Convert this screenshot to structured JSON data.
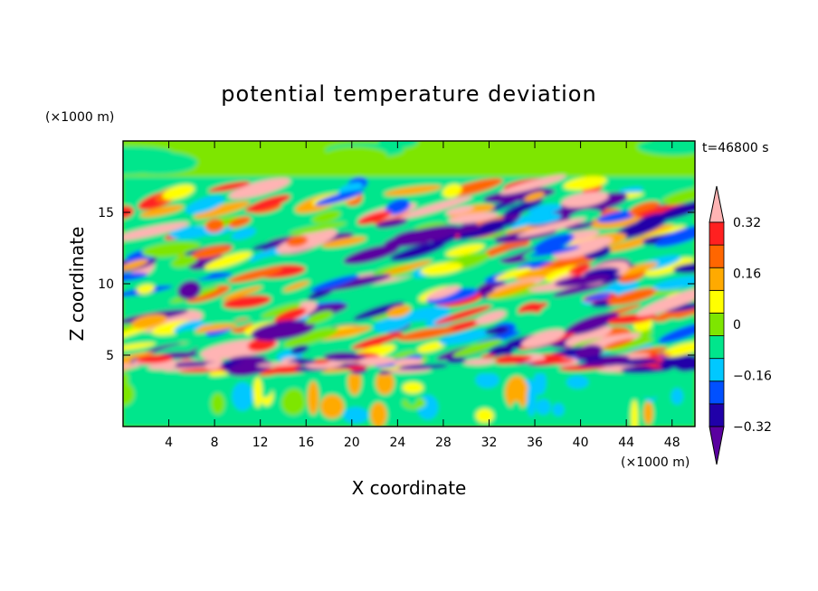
{
  "chart_data": {
    "type": "heatmap",
    "title": "potential temperature deviation",
    "xlabel": "X coordinate",
    "ylabel": "Z coordinate",
    "x_unit": "(×1000 m)",
    "y_unit": "(×1000 m)",
    "time_label": "t=46800 s",
    "xlim": [
      0,
      50
    ],
    "ylim": [
      0,
      20
    ],
    "x_ticks": [
      4,
      8,
      12,
      16,
      20,
      24,
      28,
      32,
      36,
      40,
      44,
      48
    ],
    "y_ticks": [
      5,
      10,
      15
    ],
    "colorbar": {
      "levels": [
        -0.4,
        -0.32,
        -0.24,
        -0.16,
        -0.08,
        0,
        0.08,
        0.16,
        0.24,
        0.32,
        0.4
      ],
      "labels": [
        "0.32",
        "0.16",
        "0",
        "−0.16",
        "−0.32"
      ],
      "label_values": [
        0.32,
        0.16,
        0,
        -0.16,
        -0.32
      ],
      "colors": [
        "#5a00a0",
        "#2000a8",
        "#0050ff",
        "#00c8ff",
        "#00e68c",
        "#7ee600",
        "#ffff00",
        "#ffaa00",
        "#ff6600",
        "#ff2020",
        "#ffb4b4"
      ],
      "extends": "both"
    }
  }
}
